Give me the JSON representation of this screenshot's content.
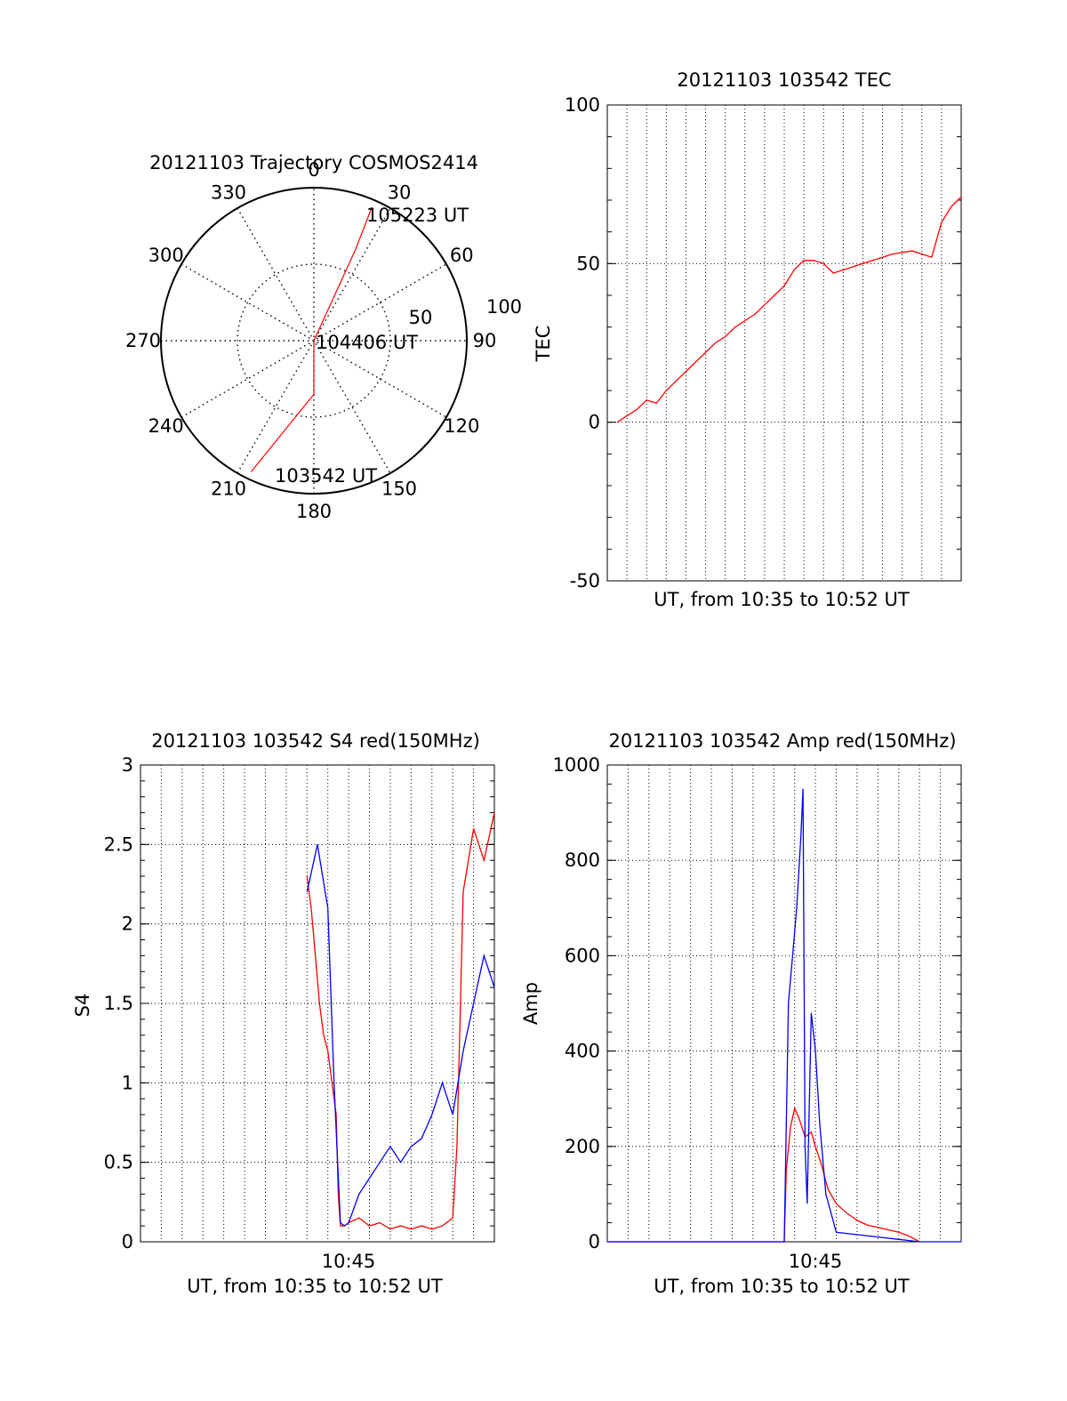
{
  "chart_data": [
    {
      "type": "polar",
      "title": "20121103 Trajectory COSMOS2414",
      "angle_labels": [
        "0",
        "30",
        "60",
        "90",
        "120",
        "150",
        "180",
        "210",
        "240",
        "270",
        "300",
        "330"
      ],
      "radial_labels": [
        "50",
        "100"
      ],
      "rlim": [
        0,
        100
      ],
      "grid": true,
      "series": [
        {
          "color": "#ff0000",
          "points": [
            [
              205.6,
              95
            ],
            [
              180,
              35
            ],
            [
              90,
              0
            ],
            [
              24.6,
              65
            ],
            [
              23.5,
              95
            ]
          ]
        }
      ],
      "annotations": [
        {
          "label": "105223 UT",
          "angle": 23.5,
          "r": 95
        },
        {
          "label": "104406 UT",
          "angle": 90,
          "r": 0
        },
        {
          "label": "103542 UT",
          "angle": 205.6,
          "r": 95
        }
      ]
    },
    {
      "type": "line",
      "title": "20121103 103542 TEC",
      "xlabel": "UT, from 10:35 to 10:52 UT",
      "ylabel": "TEC",
      "xlim": [
        0,
        18
      ],
      "ylim": [
        -50,
        100
      ],
      "yticks": [
        "100",
        "50",
        "0",
        "-50"
      ],
      "grid": true,
      "series": [
        {
          "color": "#ff0000",
          "x": [
            0.5,
            1,
            1.5,
            2,
            2.5,
            3,
            3.5,
            4,
            4.5,
            5,
            5.5,
            6,
            6.5,
            7,
            7.5,
            8,
            8.5,
            9,
            9.5,
            10,
            10.5,
            11,
            11.5,
            12,
            12.5,
            13,
            13.5,
            14,
            14.5,
            15,
            15.5,
            16,
            16.5,
            17,
            17.5,
            18
          ],
          "y": [
            0,
            2,
            4,
            7,
            6,
            10,
            13,
            16,
            19,
            22,
            25,
            27,
            30,
            32,
            34,
            37,
            40,
            43,
            48,
            51,
            51,
            50,
            47,
            48,
            49,
            50,
            51,
            52,
            53,
            53.5,
            54,
            53,
            52,
            63,
            68,
            71
          ]
        }
      ]
    },
    {
      "type": "line",
      "title": "20121103 103542 S4 red(150MHz)",
      "xlabel": "UT, from 10:35 to 10:52 UT",
      "ylabel": "S4",
      "xticks": [
        "10:45"
      ],
      "xlim": [
        0,
        17
      ],
      "ylim": [
        0,
        3
      ],
      "yticks": [
        "3",
        "2.5",
        "2",
        "1.5",
        "1",
        "0.5",
        "0"
      ],
      "grid": true,
      "series": [
        {
          "color": "#ff0000",
          "x": [
            8,
            8.2,
            8.4,
            8.6,
            8.8,
            9,
            9.2,
            9.4,
            9.5,
            9.6,
            9.8,
            10,
            10.5,
            11,
            11.5,
            12,
            12.5,
            13,
            13.5,
            14,
            14.5,
            15,
            15.2,
            15.5,
            16,
            16.5,
            17
          ],
          "y": [
            2.3,
            2.1,
            1.8,
            1.5,
            1.3,
            1.2,
            1.0,
            0.8,
            0.3,
            0.1,
            0.1,
            0.12,
            0.15,
            0.1,
            0.12,
            0.08,
            0.1,
            0.08,
            0.1,
            0.08,
            0.1,
            0.15,
            0.6,
            2.2,
            2.6,
            2.4,
            2.7
          ]
        },
        {
          "color": "#0000ff",
          "x": [
            8,
            8.5,
            9,
            9.3,
            9.6,
            9.8,
            10,
            10.5,
            11,
            11.5,
            12,
            12.5,
            13,
            13.5,
            14,
            14.5,
            15,
            15.5,
            16,
            16.5,
            17
          ],
          "y": [
            2.2,
            2.5,
            2.1,
            1.0,
            0.12,
            0.1,
            0.12,
            0.3,
            0.4,
            0.5,
            0.6,
            0.5,
            0.6,
            0.65,
            0.8,
            1.0,
            0.8,
            1.2,
            1.5,
            1.8,
            1.6
          ]
        }
      ]
    },
    {
      "type": "line",
      "title": "20121103 103542 Amp red(150MHz)",
      "xlabel": "UT, from 10:35 to 10:52 UT",
      "ylabel": "Amp",
      "xticks": [
        "10:45"
      ],
      "xlim": [
        0,
        17
      ],
      "ylim": [
        0,
        1000
      ],
      "yticks": [
        "1000",
        "800",
        "600",
        "400",
        "200",
        "0"
      ],
      "grid": true,
      "series": [
        {
          "color": "#ff0000",
          "x": [
            0,
            8.5,
            8.6,
            8.8,
            9,
            9.2,
            9.5,
            9.8,
            10,
            10.3,
            10.6,
            11,
            11.5,
            12,
            12.5,
            13,
            13.5,
            14,
            14.5,
            15
          ],
          "y": [
            0,
            0,
            150,
            240,
            280,
            260,
            220,
            230,
            200,
            160,
            110,
            80,
            60,
            45,
            35,
            30,
            25,
            20,
            12,
            0
          ]
        },
        {
          "color": "#0000ff",
          "x": [
            0,
            8.5,
            8.7,
            8.9,
            9.1,
            9.3,
            9.4,
            9.5,
            9.6,
            9.8,
            10,
            10.2,
            10.5,
            11,
            12,
            13,
            14,
            15,
            17
          ],
          "y": [
            0,
            0,
            500,
            600,
            700,
            850,
            950,
            200,
            80,
            480,
            400,
            250,
            100,
            20,
            15,
            10,
            5,
            0,
            0
          ]
        }
      ]
    }
  ]
}
